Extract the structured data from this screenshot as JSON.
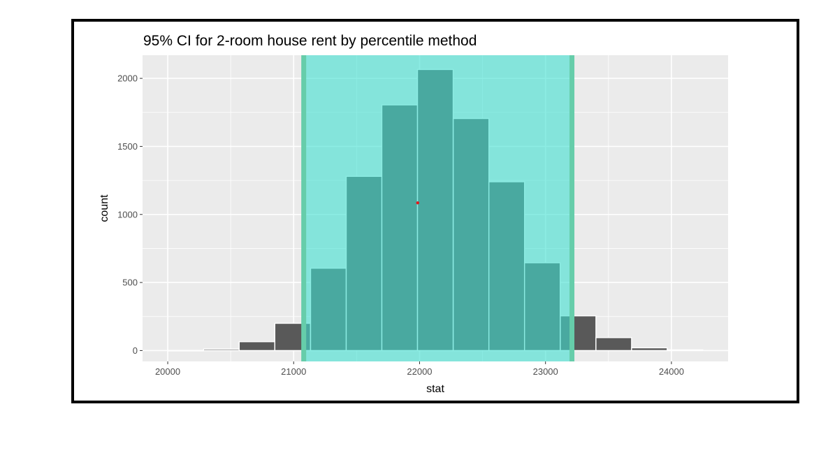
{
  "chart_data": {
    "type": "bar",
    "title": "95% CI for 2-room house rent  by percentile method",
    "xlabel": "stat",
    "ylabel": "count",
    "xlim": [
      19800,
      24450
    ],
    "ylim": [
      -80,
      2170
    ],
    "x_ticks": [
      20000,
      21000,
      22000,
      23000,
      24000
    ],
    "y_ticks": [
      0,
      500,
      1000,
      1500,
      2000
    ],
    "bin_width": 283,
    "bins": [
      {
        "x": 20143,
        "count": 0
      },
      {
        "x": 20426,
        "count": 10
      },
      {
        "x": 20709,
        "count": 65
      },
      {
        "x": 20992,
        "count": 200
      },
      {
        "x": 21276,
        "count": 605
      },
      {
        "x": 21559,
        "count": 1280
      },
      {
        "x": 21842,
        "count": 1805
      },
      {
        "x": 22125,
        "count": 2065
      },
      {
        "x": 22409,
        "count": 1705
      },
      {
        "x": 22692,
        "count": 1240
      },
      {
        "x": 22975,
        "count": 645
      },
      {
        "x": 23259,
        "count": 255
      },
      {
        "x": 23542,
        "count": 95
      },
      {
        "x": 23825,
        "count": 20
      },
      {
        "x": 24108,
        "count": 5
      }
    ],
    "ci": {
      "lower": 21080,
      "upper": 23210
    },
    "point_estimate": {
      "x": 21985,
      "y": 1085
    },
    "grid": true,
    "colors": {
      "panel_bg": "#ebebeb",
      "grid": "#ffffff",
      "bar_fill": "#595959",
      "bar_stroke": "#ffffff",
      "ci_fill": "#40e0d0",
      "ci_edge": "#66cdaa",
      "point": "#e41a1c"
    }
  }
}
